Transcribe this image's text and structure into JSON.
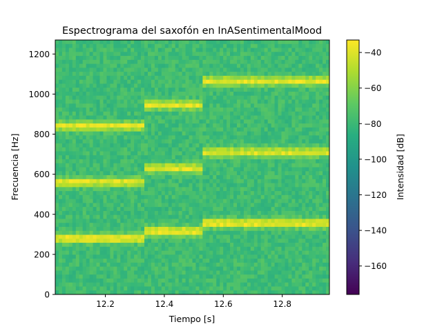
{
  "chart_data": {
    "type": "heatmap",
    "title": "Espectrograma del saxofón en InASentimentalMood",
    "xlabel": "Tiempo [s]",
    "ylabel": "Frecuencia [Hz]",
    "xlim": [
      12.03,
      12.96
    ],
    "ylim": [
      0,
      1270
    ],
    "x_ticks": [
      12.2,
      12.4,
      12.6,
      12.8
    ],
    "x_tick_labels": [
      "12.2",
      "12.4",
      "12.6",
      "12.8"
    ],
    "y_ticks": [
      0,
      200,
      400,
      600,
      800,
      1000,
      1200
    ],
    "y_tick_labels": [
      "0",
      "200",
      "400",
      "600",
      "800",
      "1000",
      "1200"
    ],
    "colorbar": {
      "label": "Intensidad [dB]",
      "range": [
        -176,
        -33
      ],
      "ticks": [
        -40,
        -60,
        -80,
        -100,
        -120,
        -140,
        -160
      ],
      "tick_labels": [
        "−40",
        "−60",
        "−80",
        "−100",
        "−120",
        "−140",
        "−160"
      ],
      "colormap": "viridis"
    },
    "background_db": -78,
    "notes": [
      {
        "t_start": 12.03,
        "t_end": 12.33,
        "harmonics_hz": [
          280,
          560,
          840
        ]
      },
      {
        "t_start": 12.33,
        "t_end": 12.53,
        "harmonics_hz": [
          315,
          630,
          945
        ]
      },
      {
        "t_start": 12.53,
        "t_end": 12.96,
        "harmonics_hz": [
          355,
          710,
          1065
        ]
      }
    ],
    "grid": false,
    "legend": "none"
  }
}
